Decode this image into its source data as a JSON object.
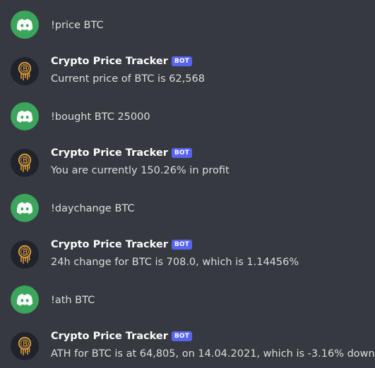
{
  "colors": {
    "background": "#36393f",
    "user_avatar": "#3ba55c",
    "bot_avatar_bg": "#1f232b",
    "bot_avatar_coin": "#e8a33d",
    "badge": "#5865f2",
    "text": "#dcddde",
    "username": "#ffffff"
  },
  "bot": {
    "name": "Crypto Price Tracker",
    "badge": "BOT"
  },
  "messages": [
    {
      "author": "user",
      "avatar_icon": "discord-logo-icon",
      "text": "!price BTC"
    },
    {
      "author": "bot",
      "avatar_icon": "bitcoin-coin-icon",
      "text": "Current price of BTC is 62,568"
    },
    {
      "author": "user",
      "avatar_icon": "discord-logo-icon",
      "text": "!bought BTC 25000"
    },
    {
      "author": "bot",
      "avatar_icon": "bitcoin-coin-icon",
      "text": "You are currently 150.26% in profit"
    },
    {
      "author": "user",
      "avatar_icon": "discord-logo-icon",
      "text": "!daychange BTC"
    },
    {
      "author": "bot",
      "avatar_icon": "bitcoin-coin-icon",
      "text": "24h change for BTC is 708.0, which is 1.14456%"
    },
    {
      "author": "user",
      "avatar_icon": "discord-logo-icon",
      "text": "!ath BTC"
    },
    {
      "author": "bot",
      "avatar_icon": "bitcoin-coin-icon",
      "text": "ATH for BTC is at 64,805, on 14.04.2021, which is -3.16% down"
    }
  ]
}
